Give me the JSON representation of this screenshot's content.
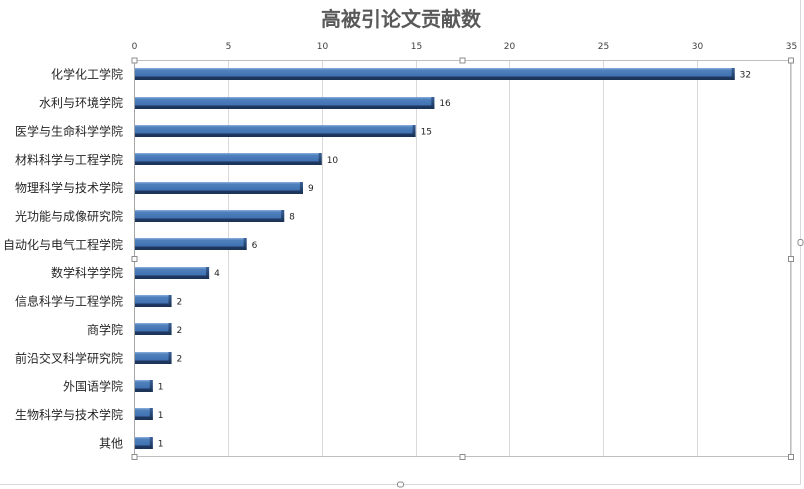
{
  "chart_data": {
    "type": "bar",
    "orientation": "horizontal",
    "title": "高被引论文贡献数",
    "categories": [
      "化学化工学院",
      "水利与环境学院",
      "医学与生命科学学院",
      "材料科学与工程学院",
      "物理科学与技术学院",
      "光功能与成像研究院",
      "自动化与电气工程学院",
      "数学科学学院",
      "信息科学与工程学院",
      "商学院",
      "前沿交叉科学研究院",
      "外国语学院",
      "生物科学与技术学院",
      "其他"
    ],
    "values": [
      32,
      16,
      15,
      10,
      9,
      8,
      6,
      4,
      2,
      2,
      2,
      1,
      1,
      1
    ],
    "xlim": [
      0,
      35
    ],
    "ticks": [
      0,
      5,
      10,
      15,
      20,
      25,
      30,
      35
    ],
    "xlabel": "",
    "ylabel": "",
    "grid": true,
    "legend": "none",
    "data_labels": true,
    "value_axis_position": "top"
  },
  "colors": {
    "bar": "#4F81BD",
    "bar_shadow": "#1F3864",
    "gridline": "#D9D9D9",
    "title": "#595959"
  }
}
